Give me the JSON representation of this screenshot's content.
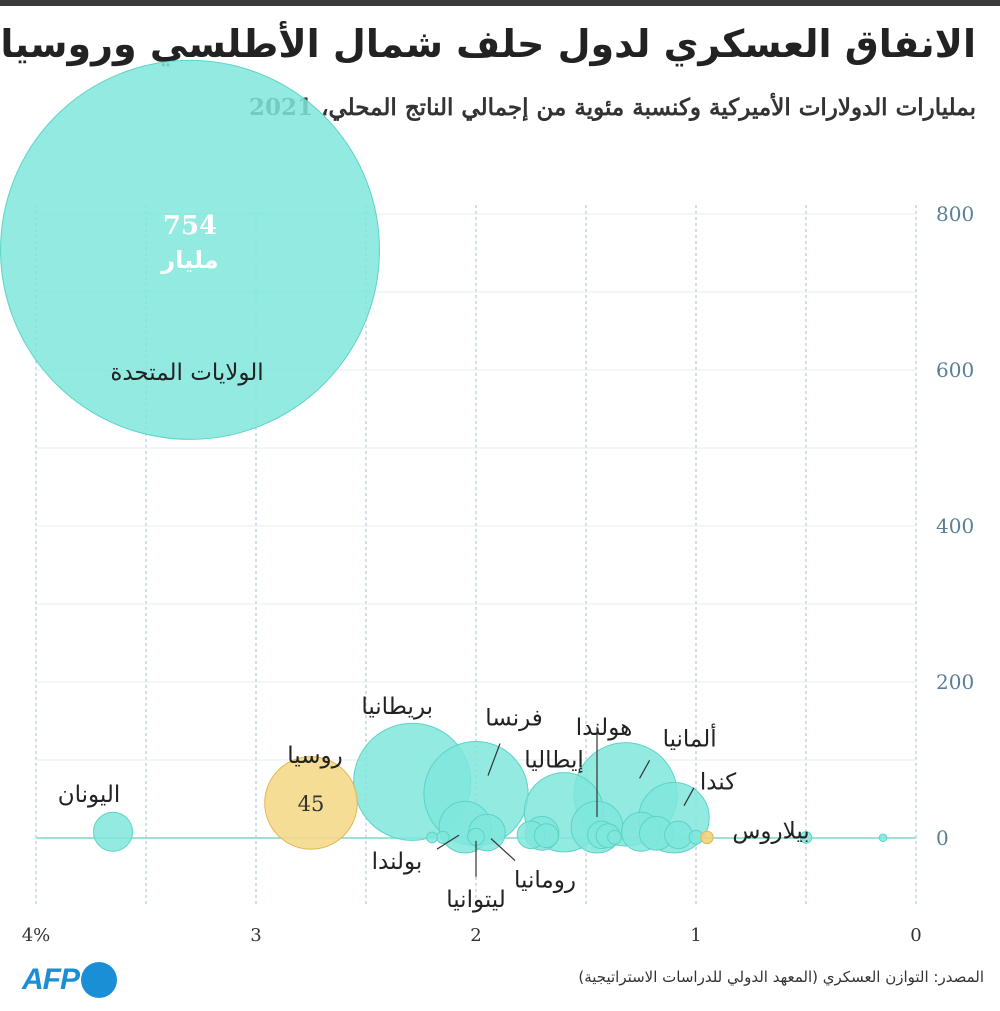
{
  "header": {
    "title": "الانفاق العسكري لدول حلف شمال الأطلسي وروسيا",
    "subtitle": "بمليارات الدولارات الأميركية وكنسبة مئوية من إجمالي الناتج المحلي، 2021"
  },
  "footer": {
    "source": "المصدر: التوازن العسكري (المعهد الدولي للدراسات الاستراتيجية)",
    "logo_text": "AFP"
  },
  "colors": {
    "nato": "#7fe6dc",
    "nato_stroke": "#5dd3c8",
    "russia": "#f5d98a",
    "russia_stroke": "#e0b850",
    "belarus": "#f5d27a",
    "axis_text": "#5b7f96",
    "grid": "#8ab4c2"
  },
  "chart_data": {
    "type": "scatter",
    "bubble": true,
    "xlabel": "",
    "ylabel": "",
    "xlim": [
      4,
      0
    ],
    "ylim": [
      -80,
      800
    ],
    "x_ticks": [
      4,
      3,
      2,
      1,
      0
    ],
    "x_tick_labels": [
      "4%",
      "3",
      "2",
      "1",
      "0"
    ],
    "y_ticks": [
      0,
      200,
      400,
      600,
      800
    ],
    "y_tick_labels": [
      "0",
      "200",
      "400",
      "600",
      "800"
    ],
    "grid": true,
    "big_label": {
      "value": "754",
      "unit": "مليار"
    },
    "series": [
      {
        "group": "nato",
        "points": [
          {
            "label": "الولايات المتحدة",
            "x": 3.3,
            "y": 754
          },
          {
            "label": "بريطانيا",
            "x": 2.29,
            "y": 72
          },
          {
            "label": "فرنسا",
            "x": 2.0,
            "y": 57
          },
          {
            "label": "ألمانيا",
            "x": 1.32,
            "y": 56
          },
          {
            "label": "إيطاليا",
            "x": 1.6,
            "y": 33
          },
          {
            "label": "كندا",
            "x": 1.1,
            "y": 26
          },
          {
            "label": "هولندا",
            "x": 1.45,
            "y": 14
          },
          {
            "label": "بولندا",
            "x": 2.05,
            "y": 14
          },
          {
            "label": "اليونان",
            "x": 3.65,
            "y": 8
          },
          {
            "label": "رومانيا",
            "x": 1.95,
            "y": 7
          },
          {
            "label": "ليتوانيا",
            "x": 2.0,
            "y": 1.5
          },
          {
            "label": "",
            "x": 2.15,
            "y": 0.8
          },
          {
            "label": "",
            "x": 2.2,
            "y": 0.6
          },
          {
            "label": "",
            "x": 1.7,
            "y": 6
          },
          {
            "label": "",
            "x": 1.75,
            "y": 4
          },
          {
            "label": "",
            "x": 1.68,
            "y": 3
          },
          {
            "label": "",
            "x": 1.43,
            "y": 4
          },
          {
            "label": "",
            "x": 1.4,
            "y": 3
          },
          {
            "label": "",
            "x": 1.37,
            "y": 1
          },
          {
            "label": "",
            "x": 1.25,
            "y": 8
          },
          {
            "label": "",
            "x": 1.18,
            "y": 6
          },
          {
            "label": "",
            "x": 1.08,
            "y": 4
          },
          {
            "label": "",
            "x": 1.0,
            "y": 1
          },
          {
            "label": "",
            "x": 0.5,
            "y": 0.7
          },
          {
            "label": "",
            "x": 0.15,
            "y": 0.3
          }
        ]
      },
      {
        "group": "other",
        "points": [
          {
            "label": "روسيا",
            "x": 2.75,
            "y": 45,
            "value_label": "45"
          },
          {
            "label": "بيلاروس",
            "x": 0.95,
            "y": 0.8
          }
        ]
      }
    ]
  }
}
